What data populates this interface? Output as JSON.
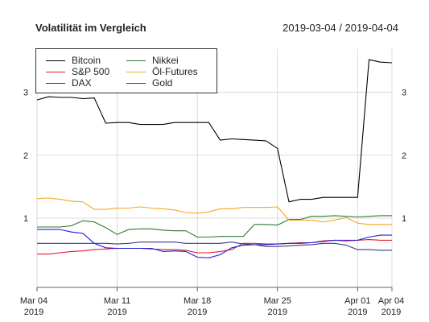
{
  "header": {
    "title": "Volatilität im Vergleich",
    "range": "2019-03-04 / 2019-04-04"
  },
  "chart_data": {
    "type": "line",
    "title": "Volatilität im Vergleich",
    "subtitle": "2019-03-04 / 2019-04-04",
    "xlabel": "",
    "ylabel": "",
    "x": [
      "2019-03-04",
      "2019-03-05",
      "2019-03-06",
      "2019-03-07",
      "2019-03-08",
      "2019-03-09",
      "2019-03-10",
      "2019-03-11",
      "2019-03-12",
      "2019-03-13",
      "2019-03-14",
      "2019-03-15",
      "2019-03-16",
      "2019-03-17",
      "2019-03-18",
      "2019-03-19",
      "2019-03-20",
      "2019-03-21",
      "2019-03-22",
      "2019-03-23",
      "2019-03-24",
      "2019-03-25",
      "2019-03-26",
      "2019-03-27",
      "2019-03-28",
      "2019-03-29",
      "2019-03-30",
      "2019-03-31",
      "2019-04-01",
      "2019-04-02",
      "2019-04-03",
      "2019-04-04"
    ],
    "xticks": [
      {
        "date": "2019-03-04",
        "line1": "Mar 04",
        "line2": "2019"
      },
      {
        "date": "2019-03-11",
        "line1": "Mar 11",
        "line2": "2019"
      },
      {
        "date": "2019-03-18",
        "line1": "Mar 18",
        "line2": "2019"
      },
      {
        "date": "2019-03-25",
        "line1": "Mar 25",
        "line2": "2019"
      },
      {
        "date": "2019-04-01",
        "line1": "Apr 01",
        "line2": "2019"
      },
      {
        "date": "2019-04-04",
        "line1": "Apr 04",
        "line2": "2019"
      }
    ],
    "yticks": [
      1,
      2,
      3
    ],
    "ylim": [
      -0.1,
      3.7
    ],
    "grid": true,
    "legend_position": "top-left",
    "series": [
      {
        "name": "Bitcoin",
        "color": "#000000",
        "values": [
          2.88,
          2.93,
          2.92,
          2.92,
          2.9,
          2.91,
          2.51,
          2.52,
          2.52,
          2.49,
          2.49,
          2.49,
          2.52,
          2.52,
          2.52,
          2.52,
          2.24,
          2.26,
          2.25,
          2.24,
          2.23,
          2.11,
          1.26,
          1.3,
          1.3,
          1.33,
          1.33,
          1.33,
          1.33,
          3.52,
          3.48,
          3.47
        ]
      },
      {
        "name": "S&P 500",
        "color": "#e8142c",
        "values": [
          0.43,
          0.43,
          0.45,
          0.47,
          0.48,
          0.5,
          0.51,
          0.52,
          0.52,
          0.52,
          0.51,
          0.5,
          0.5,
          0.49,
          0.45,
          0.45,
          0.47,
          0.5,
          0.6,
          0.6,
          0.59,
          0.59,
          0.6,
          0.61,
          0.61,
          0.64,
          0.65,
          0.65,
          0.65,
          0.66,
          0.65,
          0.65
        ]
      },
      {
        "name": "DAX",
        "color": "#1f1fe0",
        "values": [
          0.82,
          0.82,
          0.82,
          0.78,
          0.76,
          0.6,
          0.53,
          0.52,
          0.52,
          0.52,
          0.52,
          0.47,
          0.48,
          0.47,
          0.38,
          0.37,
          0.42,
          0.53,
          0.57,
          0.58,
          0.58,
          0.59,
          0.6,
          0.6,
          0.61,
          0.63,
          0.65,
          0.64,
          0.65,
          0.7,
          0.73,
          0.73
        ]
      },
      {
        "name": "Nikkei",
        "color": "#2d7a2d",
        "values": [
          0.86,
          0.86,
          0.86,
          0.88,
          0.96,
          0.94,
          0.85,
          0.74,
          0.82,
          0.83,
          0.83,
          0.81,
          0.8,
          0.8,
          0.7,
          0.7,
          0.71,
          0.71,
          0.71,
          0.9,
          0.9,
          0.89,
          0.98,
          0.98,
          1.03,
          1.03,
          1.04,
          1.03,
          1.02,
          1.03,
          1.04,
          1.04
        ]
      },
      {
        "name": "Öl-Futures",
        "color": "#f5a623",
        "values": [
          1.31,
          1.32,
          1.3,
          1.27,
          1.26,
          1.14,
          1.14,
          1.16,
          1.16,
          1.18,
          1.16,
          1.15,
          1.13,
          1.09,
          1.08,
          1.1,
          1.15,
          1.15,
          1.17,
          1.17,
          1.17,
          1.18,
          0.97,
          0.97,
          0.97,
          0.94,
          0.97,
          1.01,
          0.92,
          0.9,
          0.9,
          0.9
        ]
      },
      {
        "name": "Gold",
        "color": "#3a3a8a",
        "values": [
          0.6,
          0.6,
          0.6,
          0.6,
          0.6,
          0.6,
          0.6,
          0.59,
          0.6,
          0.62,
          0.62,
          0.62,
          0.62,
          0.6,
          0.6,
          0.6,
          0.6,
          0.62,
          0.59,
          0.58,
          0.55,
          0.55,
          0.56,
          0.57,
          0.58,
          0.6,
          0.6,
          0.57,
          0.5,
          0.5,
          0.49,
          0.49
        ]
      }
    ]
  }
}
